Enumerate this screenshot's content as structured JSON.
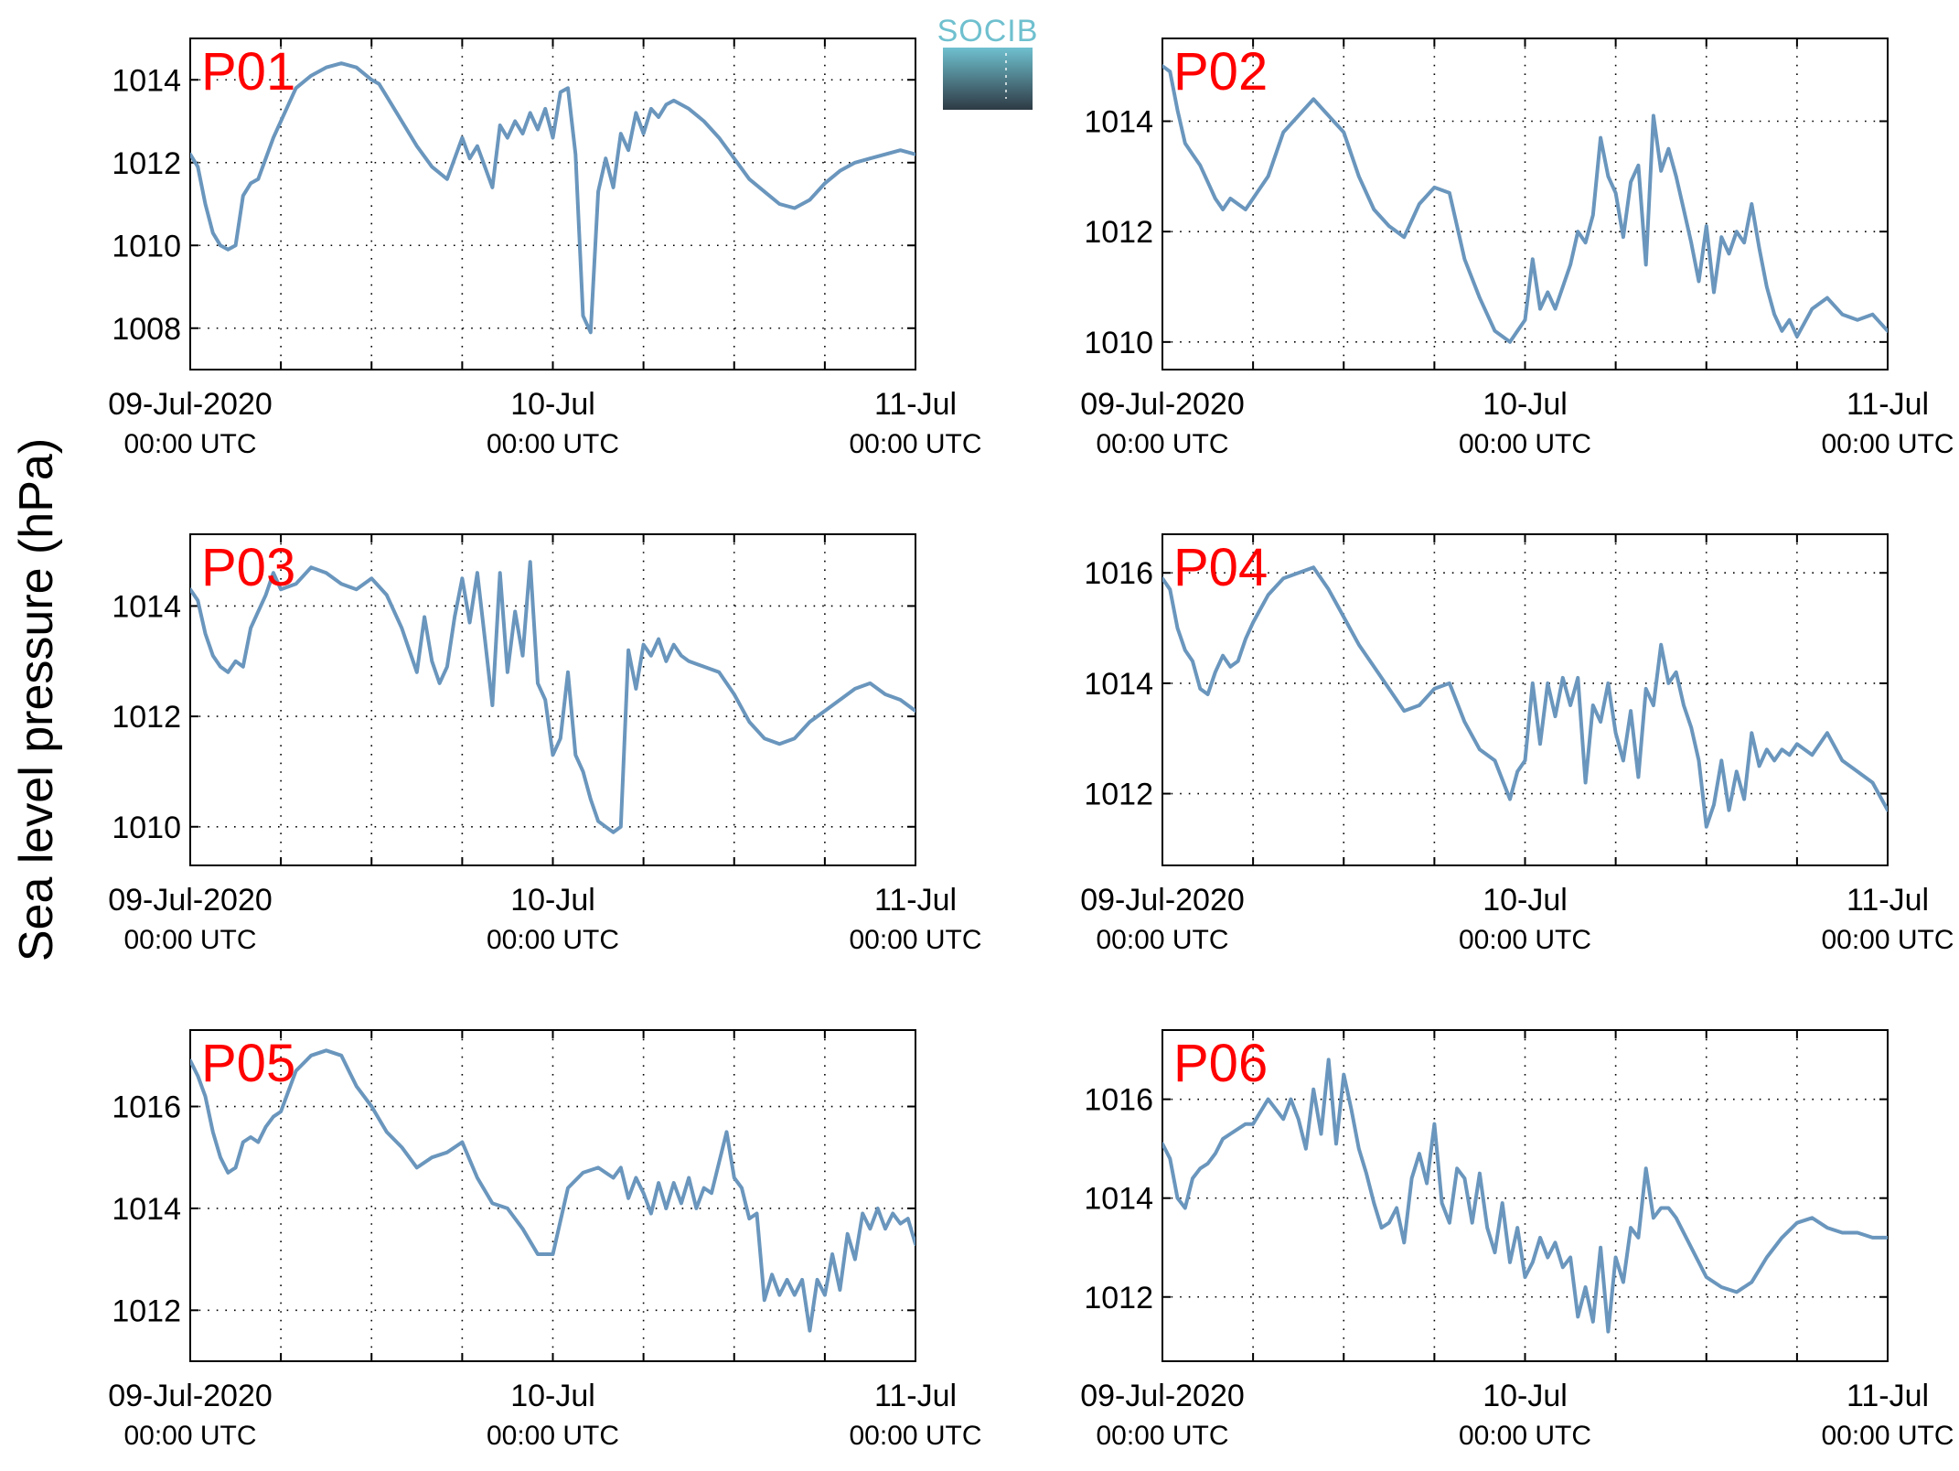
{
  "figure": {
    "ylabel": "Sea level pressure (hPa)",
    "logo": {
      "text": "SOCIB",
      "color_top": "#6fc0cf",
      "color_bottom": "#2e3a44"
    },
    "series_color": "#6a96bd",
    "title_color": "#ff0000"
  },
  "chart_data": [
    {
      "type": "line",
      "title": "P01",
      "xlim_hours": [
        0,
        48
      ],
      "ylim": [
        1007,
        1015
      ],
      "yticks": [
        1008,
        1010,
        1012,
        1014
      ],
      "xticks": [
        {
          "hour": 0,
          "label": "09-Jul-2020",
          "sub": "00:00 UTC"
        },
        {
          "hour": 24,
          "label": "10-Jul",
          "sub": "00:00 UTC"
        },
        {
          "hour": 48,
          "label": "11-Jul",
          "sub": "00:00 UTC"
        }
      ],
      "grid": true,
      "x_hours": [
        0,
        0.5,
        1,
        1.5,
        2,
        2.5,
        3,
        3.5,
        4,
        4.5,
        5,
        5.5,
        6,
        7,
        8,
        9,
        10,
        11,
        12,
        12.5,
        13,
        14,
        15,
        16,
        17,
        18,
        18.5,
        19,
        19.5,
        20,
        20.5,
        21,
        21.5,
        22,
        22.5,
        23,
        23.5,
        24,
        24.5,
        25,
        25.5,
        26,
        26.5,
        27,
        27.5,
        28,
        28.5,
        29,
        29.5,
        30,
        30.5,
        31,
        31.5,
        32,
        33,
        34,
        35,
        36,
        37,
        38,
        39,
        40,
        41,
        42,
        43,
        44,
        45,
        46,
        47,
        48
      ],
      "values": [
        1012.2,
        1011.9,
        1011.0,
        1010.3,
        1010.0,
        1009.9,
        1010.0,
        1011.2,
        1011.5,
        1011.6,
        1012.1,
        1012.6,
        1013.0,
        1013.8,
        1014.1,
        1014.3,
        1014.4,
        1014.3,
        1014.0,
        1013.9,
        1013.6,
        1013.0,
        1012.4,
        1011.9,
        1011.6,
        1012.6,
        1012.1,
        1012.4,
        1011.9,
        1011.4,
        1012.9,
        1012.6,
        1013.0,
        1012.7,
        1013.2,
        1012.8,
        1013.3,
        1012.6,
        1013.7,
        1013.8,
        1012.2,
        1008.3,
        1007.9,
        1011.3,
        1012.1,
        1011.4,
        1012.7,
        1012.3,
        1013.2,
        1012.7,
        1013.3,
        1013.1,
        1013.4,
        1013.5,
        1013.3,
        1013.0,
        1012.6,
        1012.1,
        1011.6,
        1011.3,
        1011.0,
        1010.9,
        1011.1,
        1011.5,
        1011.8,
        1012.0,
        1012.1,
        1012.2,
        1012.3,
        1012.2
      ]
    },
    {
      "type": "line",
      "title": "P02",
      "xlim_hours": [
        0,
        48
      ],
      "ylim": [
        1009.5,
        1015.5
      ],
      "yticks": [
        1010,
        1012,
        1014
      ],
      "xticks": [
        {
          "hour": 0,
          "label": "09-Jul-2020",
          "sub": "00:00 UTC"
        },
        {
          "hour": 24,
          "label": "10-Jul",
          "sub": "00:00 UTC"
        },
        {
          "hour": 48,
          "label": "11-Jul",
          "sub": "00:00 UTC"
        }
      ],
      "grid": true,
      "x_hours": [
        0,
        0.5,
        1,
        1.5,
        2,
        2.5,
        3,
        3.5,
        4,
        4.5,
        5,
        5.5,
        6,
        7,
        8,
        9,
        10,
        11,
        12,
        13,
        14,
        15,
        16,
        17,
        18,
        19,
        20,
        21,
        22,
        23,
        23.5,
        24,
        24.5,
        25,
        25.5,
        26,
        26.5,
        27,
        27.5,
        28,
        28.5,
        29,
        29.5,
        30,
        30.5,
        31,
        31.5,
        32,
        32.5,
        33,
        33.5,
        34,
        34.5,
        35,
        35.5,
        36,
        36.5,
        37,
        37.5,
        38,
        38.5,
        39,
        39.5,
        40,
        40.5,
        41,
        41.5,
        42,
        43,
        44,
        45,
        46,
        47,
        48
      ],
      "values": [
        1015.0,
        1014.9,
        1014.2,
        1013.6,
        1013.4,
        1013.2,
        1012.9,
        1012.6,
        1012.4,
        1012.6,
        1012.5,
        1012.4,
        1012.6,
        1013.0,
        1013.8,
        1014.1,
        1014.4,
        1014.1,
        1013.8,
        1013.0,
        1012.4,
        1012.1,
        1011.9,
        1012.5,
        1012.8,
        1012.7,
        1011.5,
        1010.8,
        1010.2,
        1010.0,
        1010.2,
        1010.4,
        1011.5,
        1010.6,
        1010.9,
        1010.6,
        1011.0,
        1011.4,
        1012.0,
        1011.8,
        1012.3,
        1013.7,
        1013.0,
        1012.7,
        1011.9,
        1012.9,
        1013.2,
        1011.4,
        1014.1,
        1013.1,
        1013.5,
        1013.0,
        1012.4,
        1011.8,
        1011.1,
        1012.1,
        1010.9,
        1011.9,
        1011.6,
        1012.0,
        1011.8,
        1012.5,
        1011.7,
        1011.0,
        1010.5,
        1010.2,
        1010.4,
        1010.1,
        1010.6,
        1010.8,
        1010.5,
        1010.4,
        1010.5,
        1010.2
      ]
    },
    {
      "type": "line",
      "title": "P03",
      "xlim_hours": [
        0,
        48
      ],
      "ylim": [
        1009.3,
        1015.3
      ],
      "yticks": [
        1010,
        1012,
        1014
      ],
      "xticks": [
        {
          "hour": 0,
          "label": "09-Jul-2020",
          "sub": "00:00 UTC"
        },
        {
          "hour": 24,
          "label": "10-Jul",
          "sub": "00:00 UTC"
        },
        {
          "hour": 48,
          "label": "11-Jul",
          "sub": "00:00 UTC"
        }
      ],
      "grid": true,
      "x_hours": [
        0,
        0.5,
        1,
        1.5,
        2,
        2.5,
        3,
        3.5,
        4,
        4.5,
        5,
        5.5,
        6,
        7,
        8,
        9,
        10,
        11,
        12,
        13,
        14,
        15,
        15.5,
        16,
        16.5,
        17,
        17.5,
        18,
        18.5,
        19,
        19.5,
        20,
        20.5,
        21,
        21.5,
        22,
        22.5,
        23,
        23.5,
        24,
        24.5,
        25,
        25.5,
        26,
        26.5,
        27,
        27.5,
        28,
        28.5,
        29,
        29.5,
        30,
        30.5,
        31,
        31.5,
        32,
        32.5,
        33,
        34,
        35,
        36,
        37,
        38,
        39,
        40,
        41,
        42,
        43,
        44,
        45,
        46,
        47,
        48
      ],
      "values": [
        1014.3,
        1014.1,
        1013.5,
        1013.1,
        1012.9,
        1012.8,
        1013.0,
        1012.9,
        1013.6,
        1013.9,
        1014.2,
        1014.6,
        1014.3,
        1014.4,
        1014.7,
        1014.6,
        1014.4,
        1014.3,
        1014.5,
        1014.2,
        1013.6,
        1012.8,
        1013.8,
        1013.0,
        1012.6,
        1012.9,
        1013.8,
        1014.5,
        1013.7,
        1014.6,
        1013.4,
        1012.2,
        1014.6,
        1012.8,
        1013.9,
        1013.1,
        1014.8,
        1012.6,
        1012.3,
        1011.3,
        1011.6,
        1012.8,
        1011.3,
        1011.0,
        1010.5,
        1010.1,
        1010.0,
        1009.9,
        1010.0,
        1013.2,
        1012.5,
        1013.3,
        1013.1,
        1013.4,
        1013.0,
        1013.3,
        1013.1,
        1013.0,
        1012.9,
        1012.8,
        1012.4,
        1011.9,
        1011.6,
        1011.5,
        1011.6,
        1011.9,
        1012.1,
        1012.3,
        1012.5,
        1012.6,
        1012.4,
        1012.3,
        1012.1
      ]
    },
    {
      "type": "line",
      "title": "P04",
      "xlim_hours": [
        0,
        48
      ],
      "ylim": [
        1010.7,
        1016.7
      ],
      "yticks": [
        1012,
        1014,
        1016
      ],
      "xticks": [
        {
          "hour": 0,
          "label": "09-Jul-2020",
          "sub": "00:00 UTC"
        },
        {
          "hour": 24,
          "label": "10-Jul",
          "sub": "00:00 UTC"
        },
        {
          "hour": 48,
          "label": "11-Jul",
          "sub": "00:00 UTC"
        }
      ],
      "grid": true,
      "x_hours": [
        0,
        0.5,
        1,
        1.5,
        2,
        2.5,
        3,
        3.5,
        4,
        4.5,
        5,
        5.5,
        6,
        7,
        8,
        9,
        10,
        11,
        12,
        13,
        14,
        15,
        16,
        17,
        18,
        19,
        20,
        21,
        22,
        23,
        23.5,
        24,
        24.5,
        25,
        25.5,
        26,
        26.5,
        27,
        27.5,
        28,
        28.5,
        29,
        29.5,
        30,
        30.5,
        31,
        31.5,
        32,
        32.5,
        33,
        33.5,
        34,
        34.5,
        35,
        35.5,
        36,
        36.5,
        37,
        37.5,
        38,
        38.5,
        39,
        39.5,
        40,
        40.5,
        41,
        41.5,
        42,
        43,
        44,
        45,
        46,
        47,
        48
      ],
      "values": [
        1015.9,
        1015.7,
        1015.0,
        1014.6,
        1014.4,
        1013.9,
        1013.8,
        1014.2,
        1014.5,
        1014.3,
        1014.4,
        1014.8,
        1015.1,
        1015.6,
        1015.9,
        1016.0,
        1016.1,
        1015.7,
        1015.2,
        1014.7,
        1014.3,
        1013.9,
        1013.5,
        1013.6,
        1013.9,
        1014.0,
        1013.3,
        1012.8,
        1012.6,
        1011.9,
        1012.4,
        1012.6,
        1014.0,
        1012.9,
        1014.0,
        1013.4,
        1014.1,
        1013.6,
        1014.1,
        1012.2,
        1013.6,
        1013.3,
        1014.0,
        1013.1,
        1012.6,
        1013.5,
        1012.3,
        1013.9,
        1013.6,
        1014.7,
        1014.0,
        1014.2,
        1013.6,
        1013.2,
        1012.6,
        1011.4,
        1011.8,
        1012.6,
        1011.7,
        1012.4,
        1011.9,
        1013.1,
        1012.5,
        1012.8,
        1012.6,
        1012.8,
        1012.7,
        1012.9,
        1012.7,
        1013.1,
        1012.6,
        1012.4,
        1012.2,
        1011.7
      ]
    },
    {
      "type": "line",
      "title": "P05",
      "xlim_hours": [
        0,
        48
      ],
      "ylim": [
        1011,
        1017.5
      ],
      "yticks": [
        1012,
        1014,
        1016
      ],
      "xticks": [
        {
          "hour": 0,
          "label": "09-Jul-2020",
          "sub": "00:00 UTC"
        },
        {
          "hour": 24,
          "label": "10-Jul",
          "sub": "00:00 UTC"
        },
        {
          "hour": 48,
          "label": "11-Jul",
          "sub": "00:00 UTC"
        }
      ],
      "grid": true,
      "x_hours": [
        0,
        0.5,
        1,
        1.5,
        2,
        2.5,
        3,
        3.5,
        4,
        4.5,
        5,
        5.5,
        6,
        7,
        8,
        9,
        10,
        11,
        12,
        13,
        14,
        15,
        16,
        17,
        18,
        19,
        20,
        21,
        22,
        23,
        24,
        25,
        26,
        27,
        28,
        28.5,
        29,
        29.5,
        30,
        30.5,
        31,
        31.5,
        32,
        32.5,
        33,
        33.5,
        34,
        34.5,
        35,
        35.5,
        36,
        36.5,
        37,
        37.5,
        38,
        38.5,
        39,
        39.5,
        40,
        40.5,
        41,
        41.5,
        42,
        42.5,
        43,
        43.5,
        44,
        44.5,
        45,
        45.5,
        46,
        46.5,
        47,
        47.5,
        48
      ],
      "values": [
        1016.9,
        1016.6,
        1016.2,
        1015.5,
        1015.0,
        1014.7,
        1014.8,
        1015.3,
        1015.4,
        1015.3,
        1015.6,
        1015.8,
        1015.9,
        1016.7,
        1017.0,
        1017.1,
        1017.0,
        1016.4,
        1016.0,
        1015.5,
        1015.2,
        1014.8,
        1015.0,
        1015.1,
        1015.3,
        1014.6,
        1014.1,
        1014.0,
        1013.6,
        1013.1,
        1013.1,
        1014.4,
        1014.7,
        1014.8,
        1014.6,
        1014.8,
        1014.2,
        1014.6,
        1014.3,
        1013.9,
        1014.5,
        1014.0,
        1014.5,
        1014.1,
        1014.6,
        1014.0,
        1014.4,
        1014.3,
        1014.9,
        1015.5,
        1014.6,
        1014.4,
        1013.8,
        1013.9,
        1012.2,
        1012.7,
        1012.3,
        1012.6,
        1012.3,
        1012.6,
        1011.6,
        1012.6,
        1012.3,
        1013.1,
        1012.4,
        1013.5,
        1013.0,
        1013.9,
        1013.6,
        1014.0,
        1013.6,
        1013.9,
        1013.7,
        1013.8,
        1013.3
      ]
    },
    {
      "type": "line",
      "title": "P06",
      "xlim_hours": [
        0,
        48
      ],
      "ylim": [
        1010.7,
        1017.4
      ],
      "yticks": [
        1012,
        1014,
        1016
      ],
      "xticks": [
        {
          "hour": 0,
          "label": "09-Jul-2020",
          "sub": "00:00 UTC"
        },
        {
          "hour": 24,
          "label": "10-Jul",
          "sub": "00:00 UTC"
        },
        {
          "hour": 48,
          "label": "11-Jul",
          "sub": "00:00 UTC"
        }
      ],
      "grid": true,
      "x_hours": [
        0,
        0.5,
        1,
        1.5,
        2,
        2.5,
        3,
        3.5,
        4,
        4.5,
        5,
        5.5,
        6,
        7,
        8,
        8.5,
        9,
        9.5,
        10,
        10.5,
        11,
        11.5,
        12,
        12.5,
        13,
        13.5,
        14,
        14.5,
        15,
        15.5,
        16,
        16.5,
        17,
        17.5,
        18,
        18.5,
        19,
        19.5,
        20,
        20.5,
        21,
        21.5,
        22,
        22.5,
        23,
        23.5,
        24,
        24.5,
        25,
        25.5,
        26,
        26.5,
        27,
        27.5,
        28,
        28.5,
        29,
        29.5,
        30,
        30.5,
        31,
        31.5,
        32,
        32.5,
        33,
        33.5,
        34,
        35,
        36,
        37,
        38,
        39,
        40,
        41,
        42,
        43,
        44,
        45,
        46,
        47,
        48
      ],
      "values": [
        1015.1,
        1014.8,
        1014.0,
        1013.8,
        1014.4,
        1014.6,
        1014.7,
        1014.9,
        1015.2,
        1015.3,
        1015.4,
        1015.5,
        1015.5,
        1016.0,
        1015.6,
        1016.0,
        1015.6,
        1015.0,
        1016.2,
        1015.3,
        1016.8,
        1015.1,
        1016.5,
        1015.8,
        1015.0,
        1014.5,
        1013.9,
        1013.4,
        1013.5,
        1013.8,
        1013.1,
        1014.4,
        1014.9,
        1014.3,
        1015.5,
        1013.9,
        1013.5,
        1014.6,
        1014.4,
        1013.5,
        1014.5,
        1013.4,
        1012.9,
        1013.9,
        1012.7,
        1013.4,
        1012.4,
        1012.7,
        1013.2,
        1012.8,
        1013.1,
        1012.6,
        1012.8,
        1011.6,
        1012.2,
        1011.5,
        1013.0,
        1011.3,
        1012.8,
        1012.3,
        1013.4,
        1013.2,
        1014.6,
        1013.6,
        1013.8,
        1013.8,
        1013.6,
        1013.0,
        1012.4,
        1012.2,
        1012.1,
        1012.3,
        1012.8,
        1013.2,
        1013.5,
        1013.6,
        1013.4,
        1013.3,
        1013.3,
        1013.2,
        1013.2
      ]
    }
  ]
}
